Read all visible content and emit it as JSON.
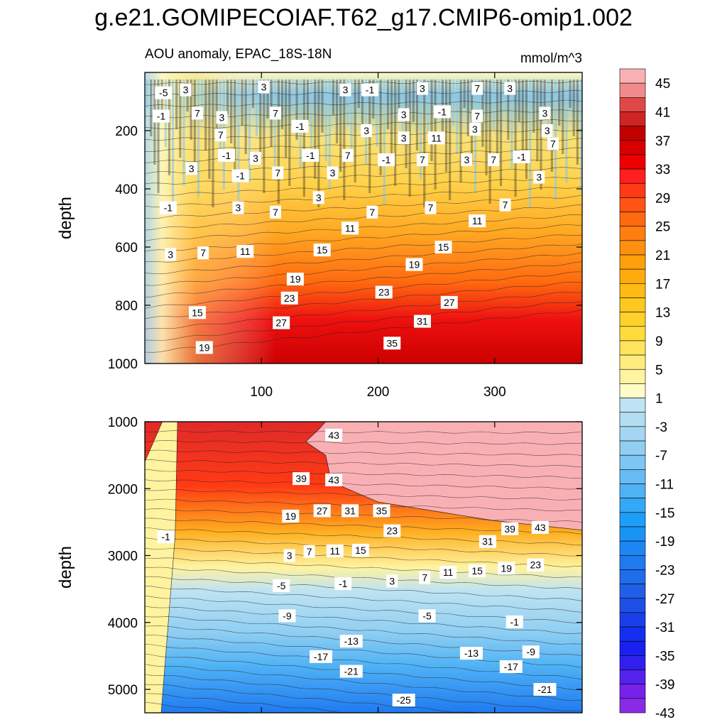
{
  "chart_data": {
    "type": "heatmap",
    "title": "g.e21.GOMIPECOIAF.T62_g17.CMIP6-omip1.002",
    "subtitle_left": "AOU anomaly, EPAC_18S-18N",
    "subtitle_right": "mmol/m^3",
    "xlim": [
      0,
      375
    ],
    "x_ticks": [
      100,
      200,
      300
    ],
    "panels": [
      {
        "name": "upper",
        "ylabel": "depth",
        "ylim": [
          0,
          1000
        ],
        "y_ticks": [
          200,
          400,
          600,
          800,
          1000
        ],
        "contour_labels": [
          {
            "x": 16,
            "y": 70,
            "v": "-5"
          },
          {
            "x": 35,
            "y": 60,
            "v": "3"
          },
          {
            "x": 102,
            "y": 50,
            "v": "3"
          },
          {
            "x": 172,
            "y": 60,
            "v": "3"
          },
          {
            "x": 193,
            "y": 60,
            "v": "-1"
          },
          {
            "x": 238,
            "y": 55,
            "v": "3"
          },
          {
            "x": 285,
            "y": 55,
            "v": "7"
          },
          {
            "x": 313,
            "y": 55,
            "v": "3"
          },
          {
            "x": 14,
            "y": 150,
            "v": "-1"
          },
          {
            "x": 45,
            "y": 140,
            "v": "7"
          },
          {
            "x": 66,
            "y": 155,
            "v": "3"
          },
          {
            "x": 112,
            "y": 140,
            "v": "7"
          },
          {
            "x": 133,
            "y": 185,
            "v": "-1"
          },
          {
            "x": 222,
            "y": 145,
            "v": "3"
          },
          {
            "x": 255,
            "y": 135,
            "v": "-1"
          },
          {
            "x": 285,
            "y": 150,
            "v": "7"
          },
          {
            "x": 343,
            "y": 140,
            "v": "3"
          },
          {
            "x": 65,
            "y": 215,
            "v": "7"
          },
          {
            "x": 190,
            "y": 200,
            "v": "3"
          },
          {
            "x": 222,
            "y": 225,
            "v": "3"
          },
          {
            "x": 250,
            "y": 225,
            "v": "11"
          },
          {
            "x": 283,
            "y": 195,
            "v": "3"
          },
          {
            "x": 345,
            "y": 200,
            "v": "3"
          },
          {
            "x": 350,
            "y": 245,
            "v": "7"
          },
          {
            "x": 70,
            "y": 285,
            "v": "-1"
          },
          {
            "x": 95,
            "y": 295,
            "v": "3"
          },
          {
            "x": 142,
            "y": 285,
            "v": "-1"
          },
          {
            "x": 174,
            "y": 285,
            "v": "7"
          },
          {
            "x": 207,
            "y": 300,
            "v": "-1"
          },
          {
            "x": 238,
            "y": 300,
            "v": "7"
          },
          {
            "x": 276,
            "y": 300,
            "v": "3"
          },
          {
            "x": 299,
            "y": 300,
            "v": "7"
          },
          {
            "x": 323,
            "y": 290,
            "v": "-1"
          },
          {
            "x": 40,
            "y": 330,
            "v": "3"
          },
          {
            "x": 114,
            "y": 345,
            "v": "7"
          },
          {
            "x": 161,
            "y": 345,
            "v": "3"
          },
          {
            "x": 82,
            "y": 355,
            "v": "-1"
          },
          {
            "x": 338,
            "y": 360,
            "v": "3"
          },
          {
            "x": 149,
            "y": 430,
            "v": "3"
          },
          {
            "x": 20,
            "y": 465,
            "v": "-1"
          },
          {
            "x": 80,
            "y": 465,
            "v": "3"
          },
          {
            "x": 112,
            "y": 480,
            "v": "7"
          },
          {
            "x": 195,
            "y": 480,
            "v": "7"
          },
          {
            "x": 245,
            "y": 465,
            "v": "7"
          },
          {
            "x": 309,
            "y": 455,
            "v": "7"
          },
          {
            "x": 176,
            "y": 535,
            "v": "11"
          },
          {
            "x": 285,
            "y": 510,
            "v": "11"
          },
          {
            "x": 22,
            "y": 625,
            "v": "3"
          },
          {
            "x": 50,
            "y": 620,
            "v": "7"
          },
          {
            "x": 86,
            "y": 615,
            "v": "11"
          },
          {
            "x": 152,
            "y": 610,
            "v": "15"
          },
          {
            "x": 256,
            "y": 600,
            "v": "15"
          },
          {
            "x": 231,
            "y": 660,
            "v": "19"
          },
          {
            "x": 129,
            "y": 710,
            "v": "19"
          },
          {
            "x": 205,
            "y": 755,
            "v": "23"
          },
          {
            "x": 124,
            "y": 775,
            "v": "23"
          },
          {
            "x": 261,
            "y": 790,
            "v": "27"
          },
          {
            "x": 45,
            "y": 825,
            "v": "15"
          },
          {
            "x": 238,
            "y": 855,
            "v": "31"
          },
          {
            "x": 117,
            "y": 860,
            "v": "27"
          },
          {
            "x": 212,
            "y": 930,
            "v": "35"
          },
          {
            "x": 51,
            "y": 945,
            "v": "19"
          }
        ]
      },
      {
        "name": "lower",
        "ylabel": "depth",
        "ylim": [
          1000,
          5350
        ],
        "y_ticks": [
          1000,
          2000,
          3000,
          4000,
          5000
        ],
        "contour_labels": [
          {
            "x": 162,
            "y": 1200,
            "v": "43"
          },
          {
            "x": 134,
            "y": 1850,
            "v": "39"
          },
          {
            "x": 162,
            "y": 1870,
            "v": "43"
          },
          {
            "x": 125,
            "y": 2410,
            "v": "19"
          },
          {
            "x": 152,
            "y": 2330,
            "v": "27"
          },
          {
            "x": 176,
            "y": 2330,
            "v": "31"
          },
          {
            "x": 203,
            "y": 2330,
            "v": "35"
          },
          {
            "x": 212,
            "y": 2630,
            "v": "23"
          },
          {
            "x": 313,
            "y": 2600,
            "v": "39"
          },
          {
            "x": 339,
            "y": 2580,
            "v": "43"
          },
          {
            "x": 294,
            "y": 2790,
            "v": "31"
          },
          {
            "x": 18,
            "y": 2720,
            "v": "-1"
          },
          {
            "x": 124,
            "y": 3000,
            "v": "3"
          },
          {
            "x": 141,
            "y": 2940,
            "v": "7"
          },
          {
            "x": 163,
            "y": 2930,
            "v": "11"
          },
          {
            "x": 185,
            "y": 2920,
            "v": "15"
          },
          {
            "x": 335,
            "y": 3140,
            "v": "23"
          },
          {
            "x": 310,
            "y": 3190,
            "v": "19"
          },
          {
            "x": 285,
            "y": 3230,
            "v": "15"
          },
          {
            "x": 260,
            "y": 3250,
            "v": "11"
          },
          {
            "x": 240,
            "y": 3330,
            "v": "7"
          },
          {
            "x": 212,
            "y": 3380,
            "v": "3"
          },
          {
            "x": 170,
            "y": 3420,
            "v": "-1"
          },
          {
            "x": 117,
            "y": 3450,
            "v": "-5"
          },
          {
            "x": 122,
            "y": 3900,
            "v": "-9"
          },
          {
            "x": 242,
            "y": 3900,
            "v": "-5"
          },
          {
            "x": 317,
            "y": 3990,
            "v": "-1"
          },
          {
            "x": 177,
            "y": 4280,
            "v": "-13"
          },
          {
            "x": 151,
            "y": 4510,
            "v": "-17"
          },
          {
            "x": 280,
            "y": 4460,
            "v": "-13"
          },
          {
            "x": 331,
            "y": 4440,
            "v": "-9"
          },
          {
            "x": 177,
            "y": 4730,
            "v": "-21"
          },
          {
            "x": 314,
            "y": 4660,
            "v": "-17"
          },
          {
            "x": 343,
            "y": 5000,
            "v": "-21"
          },
          {
            "x": 222,
            "y": 5160,
            "v": "-25"
          }
        ]
      }
    ],
    "colorbar": {
      "labels": [
        "45",
        "41",
        "37",
        "33",
        "29",
        "25",
        "21",
        "17",
        "13",
        "9",
        "5",
        "1",
        "-3",
        "-7",
        "-11",
        "-15",
        "-19",
        "-23",
        "-27",
        "-31",
        "-35",
        "-39",
        "-43"
      ],
      "colors": [
        "#f9b0b4",
        "#f08b8b",
        "#e04848",
        "#cf2424",
        "#c20000",
        "#d80000",
        "#ee0000",
        "#ff1f1f",
        "#ff3a14",
        "#ff5414",
        "#ff6a10",
        "#ff7e10",
        "#ff9010",
        "#ffa00a",
        "#ffac0a",
        "#ffbb14",
        "#ffc820",
        "#ffd12c",
        "#ffdc3c",
        "#ffe45c",
        "#ffec7e",
        "#fff3a0",
        "#fffcc8",
        "#bfe3f3",
        "#b2ddf2",
        "#a4d6f1",
        "#91cff2",
        "#7dc6f3",
        "#66bcf3",
        "#4fb2f5",
        "#33a8f6",
        "#1d9ef8",
        "#1a93f6",
        "#1c87f3",
        "#1f7af0",
        "#206deb",
        "#205fe7",
        "#1f50e6",
        "#1a3fea",
        "#1430ee",
        "#1a20f2",
        "#3020f0",
        "#5522ee",
        "#7622ea",
        "#8a2ae5"
      ]
    }
  }
}
